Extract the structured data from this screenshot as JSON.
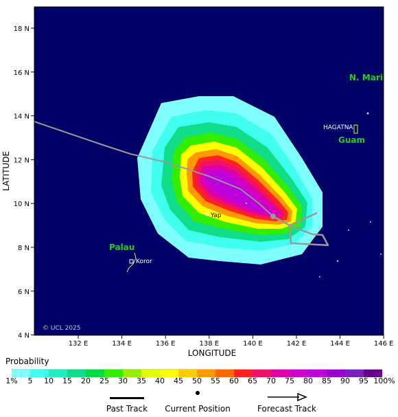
{
  "map": {
    "background_color": "#000066",
    "x_ticks": [
      "132 E",
      "134 E",
      "136 E",
      "138 E",
      "140 E",
      "142 E",
      "144 E",
      "146 E"
    ],
    "y_ticks": [
      "18 N",
      "16 N",
      "14 N",
      "12 N",
      "10 N",
      "8 N",
      "6 N",
      "4 N"
    ],
    "x_axis_title": "LONGITUDE",
    "y_axis_title": "LATITUDE",
    "copyright": "© UCL 2025",
    "regions": {
      "mariana": "N. Mari",
      "guam": "Guam",
      "palau": "Palau"
    },
    "places": {
      "hagatna": "HAGATNA",
      "yap": "Yap",
      "koror": "Koror"
    },
    "track_color": "#999999"
  },
  "legend": {
    "title": "Probability",
    "labels": [
      "1%",
      "5",
      "10",
      "15",
      "20",
      "25",
      "30",
      "35",
      "40",
      "45",
      "50",
      "55",
      "60",
      "65",
      "70",
      "75",
      "80",
      "85",
      "90",
      "95",
      "100%"
    ],
    "colors": [
      "#80ffff",
      "#40ffee",
      "#20eebb",
      "#10dd88",
      "#00dd44",
      "#33ee00",
      "#99ee00",
      "#ddff00",
      "#ffff00",
      "#ffcc00",
      "#ff9900",
      "#ff6600",
      "#ff2222",
      "#ee1166",
      "#dd00aa",
      "#cc00cc",
      "#bb00dd",
      "#9900cc",
      "#7722bb",
      "#660088"
    ],
    "past_track": "Past Track",
    "current_position": "Current Position",
    "forecast_track": "Forecast Track"
  }
}
